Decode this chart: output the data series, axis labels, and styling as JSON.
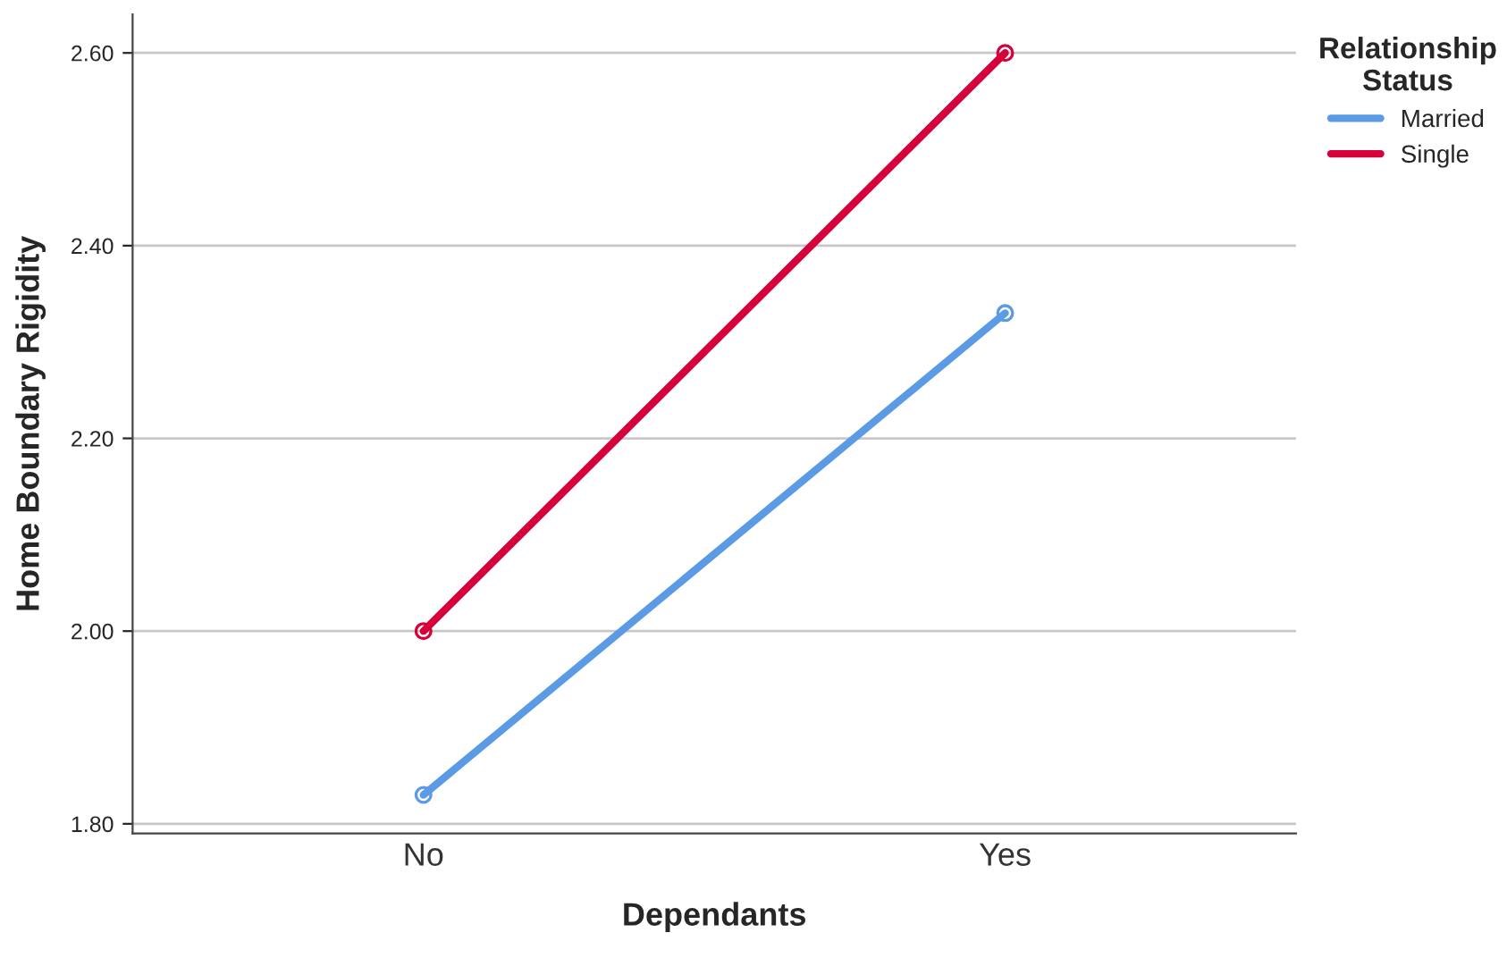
{
  "chart_data": {
    "type": "line",
    "xlabel": "Dependants",
    "ylabel": "Home Boundary Rigidity",
    "legend_title": "Relationship\nStatus",
    "categories": [
      "No",
      "Yes"
    ],
    "series": [
      {
        "name": "Married",
        "color": "#5b9be6",
        "values": [
          1.83,
          2.33
        ]
      },
      {
        "name": "Single",
        "color": "#d6003a",
        "values": [
          2.0,
          2.6
        ]
      }
    ],
    "ylim": [
      1.79,
      2.64
    ],
    "yticks": [
      {
        "value": 1.8,
        "label": "1.80"
      },
      {
        "value": 2.0,
        "label": "2.00"
      },
      {
        "value": 2.2,
        "label": "2.20"
      },
      {
        "value": 2.4,
        "label": "2.40"
      },
      {
        "value": 2.6,
        "label": "2.60"
      }
    ],
    "grid": "y",
    "legend": "top right",
    "marker": "circle",
    "line_style": "solid"
  }
}
